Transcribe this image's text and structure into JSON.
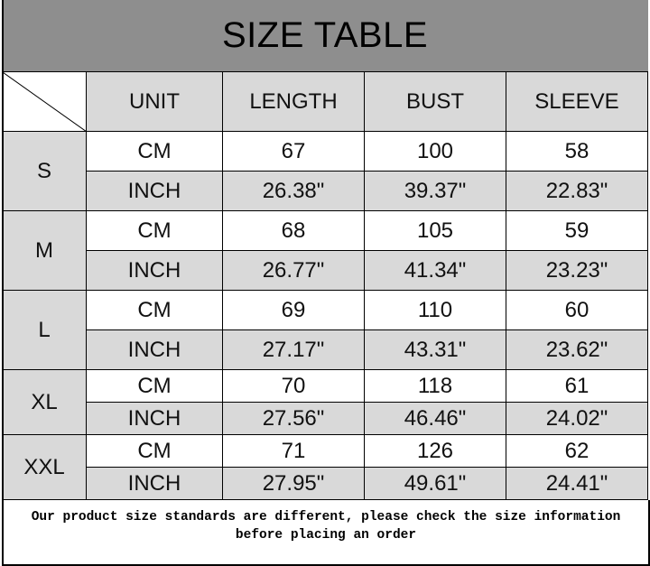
{
  "title": "SIZE TABLE",
  "headers": [
    "UNIT",
    "LENGTH",
    "BUST",
    "SLEEVE"
  ],
  "colors": {
    "title_bg": "#8e8e8e",
    "cell_gray": "#d9d9d9",
    "cell_white": "#ffffff"
  },
  "sizes": [
    {
      "size": "S",
      "rows": [
        {
          "unit": "CM",
          "length": "67",
          "bust": "100",
          "sleeve": "58"
        },
        {
          "unit": "INCH",
          "length": "26.38\"",
          "bust": "39.37\"",
          "sleeve": "22.83\""
        }
      ]
    },
    {
      "size": "M",
      "rows": [
        {
          "unit": "CM",
          "length": "68",
          "bust": "105",
          "sleeve": "59"
        },
        {
          "unit": "INCH",
          "length": "26.77\"",
          "bust": "41.34\"",
          "sleeve": "23.23\""
        }
      ]
    },
    {
      "size": "L",
      "rows": [
        {
          "unit": "CM",
          "length": "69",
          "bust": "110",
          "sleeve": "60"
        },
        {
          "unit": "INCH",
          "length": "27.17\"",
          "bust": "43.31\"",
          "sleeve": "23.62\""
        }
      ]
    },
    {
      "size": "XL",
      "rows": [
        {
          "unit": "CM",
          "length": "70",
          "bust": "118",
          "sleeve": "61"
        },
        {
          "unit": "INCH",
          "length": "27.56\"",
          "bust": "46.46\"",
          "sleeve": "24.02\""
        }
      ]
    },
    {
      "size": "XXL",
      "rows": [
        {
          "unit": "CM",
          "length": "71",
          "bust": "126",
          "sleeve": "62"
        },
        {
          "unit": "INCH",
          "length": "27.95\"",
          "bust": "49.61\"",
          "sleeve": "24.41\""
        }
      ]
    }
  ],
  "footer": {
    "line1": "Our product size standards are different, please check the size information",
    "line2": "before placing an order"
  }
}
